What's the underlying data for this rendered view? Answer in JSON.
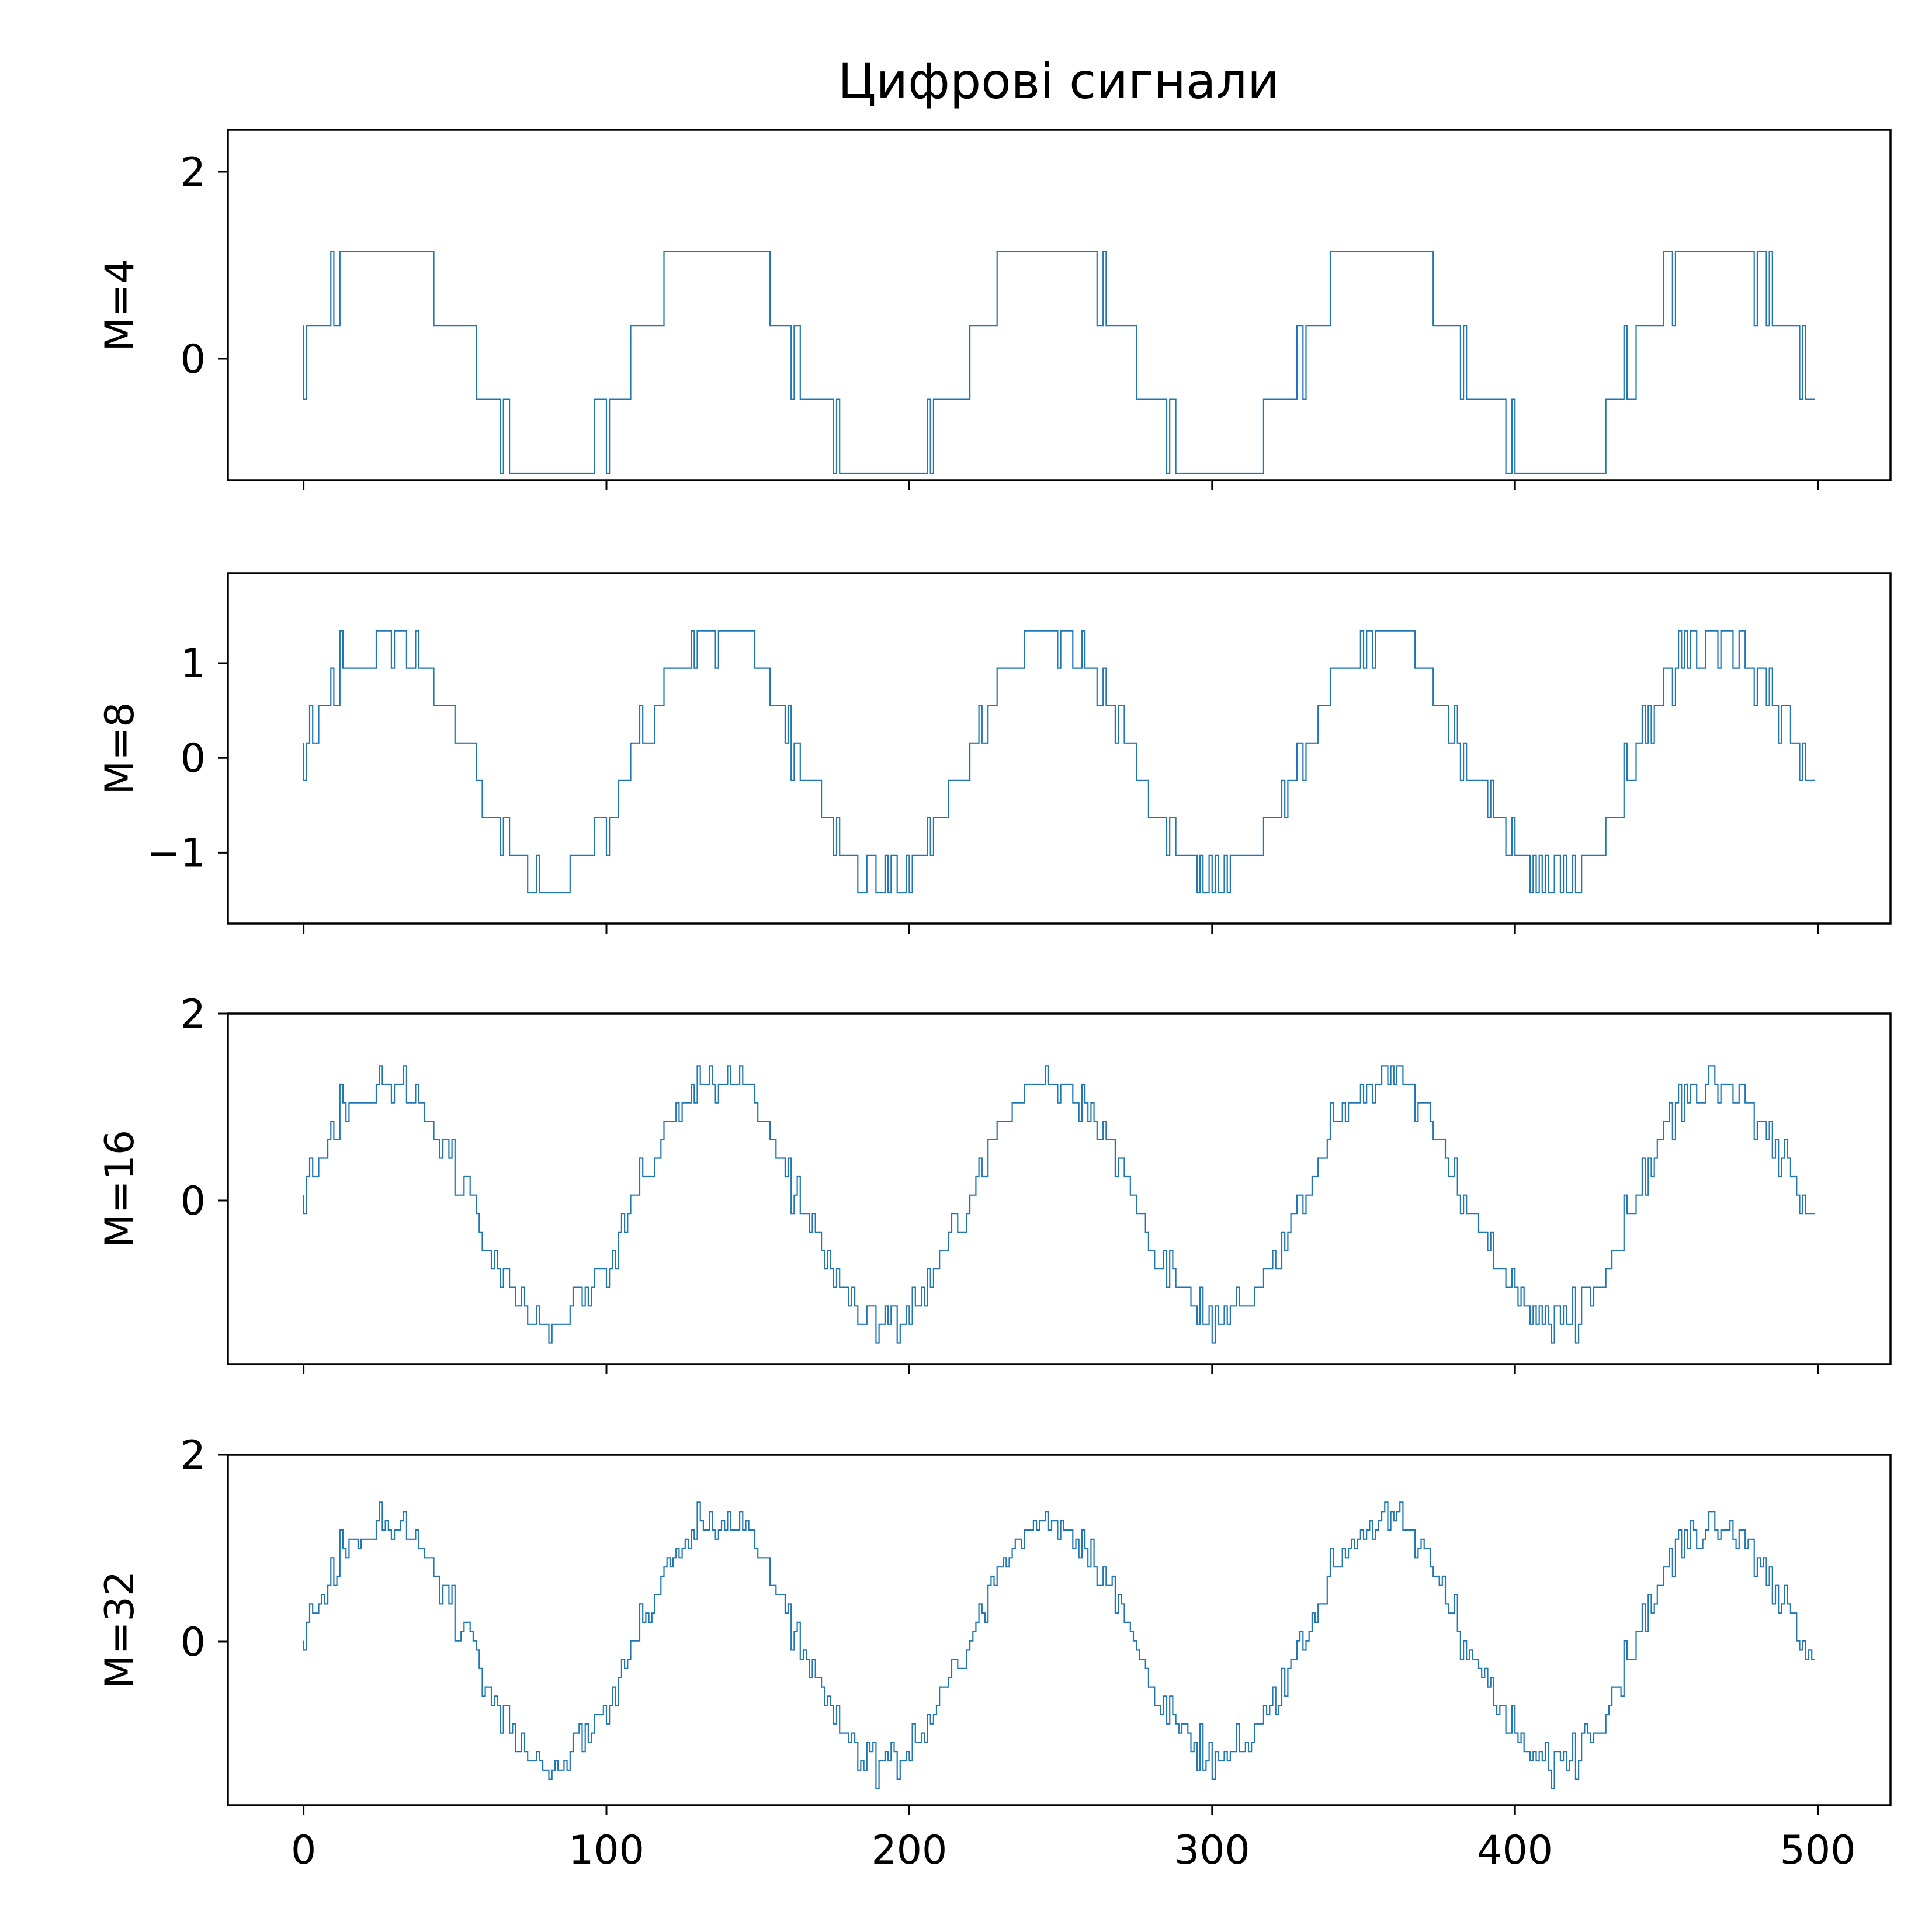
{
  "chart_data": {
    "type": "line",
    "drawstyle": "steps",
    "title": "Цифрові сигнали",
    "x_ticks": [
      0,
      100,
      200,
      300,
      400,
      500
    ],
    "xlim": [
      -25,
      524
    ],
    "grid": false,
    "legend": "none",
    "line_color": "#1f77b4",
    "sample_count": 500,
    "subplots": [
      {
        "ylabel": "M=4",
        "levels": 4,
        "ylim": [
          -1.3,
          2.45
        ],
        "yticks": [
          {
            "value": 0,
            "label": "0"
          },
          {
            "value": 2,
            "label": "2"
          }
        ],
        "x_step": 1,
        "values": []
      },
      {
        "ylabel": "M=8",
        "levels": 8,
        "ylim": [
          -1.75,
          1.95
        ],
        "yticks": [
          {
            "value": -1,
            "label": "−1"
          },
          {
            "value": 0,
            "label": "0"
          },
          {
            "value": 1,
            "label": "1"
          }
        ],
        "x_step": 1,
        "values": []
      },
      {
        "ylabel": "M=16",
        "levels": 16,
        "ylim": [
          -1.75,
          2.0
        ],
        "yticks": [
          {
            "value": 0,
            "label": "0"
          },
          {
            "value": 2,
            "label": "2"
          }
        ],
        "x_step": 1,
        "values": []
      },
      {
        "ylabel": "M=32",
        "levels": 32,
        "ylim": [
          -1.75,
          2.0
        ],
        "yticks": [
          {
            "value": 0,
            "label": "0"
          },
          {
            "value": 2,
            "label": "2"
          }
        ],
        "x_step": 1,
        "values": []
      }
    ]
  }
}
